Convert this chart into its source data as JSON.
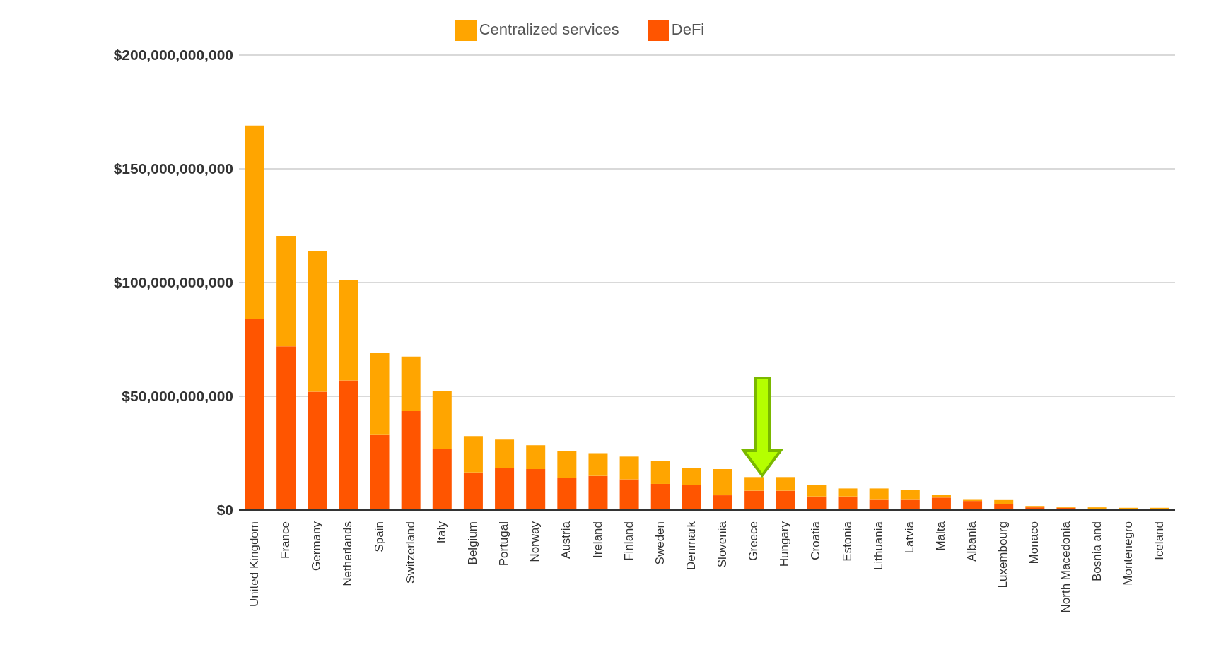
{
  "chart_data": {
    "type": "bar",
    "stacked": true,
    "categories": [
      "United Kingdom",
      "France",
      "Germany",
      "Netherlands",
      "Spain",
      "Switzerland",
      "Italy",
      "Belgium",
      "Portugal",
      "Norway",
      "Austria",
      "Ireland",
      "Finland",
      "Sweden",
      "Denmark",
      "Slovenia",
      "Greece",
      "Hungary",
      "Croatia",
      "Estonia",
      "Lithuania",
      "Latvia",
      "Malta",
      "Albania",
      "Luxembourg",
      "Monaco",
      "North Macedonia",
      "Bosnia and",
      "Montenegro",
      "Iceland"
    ],
    "series": [
      {
        "name": "DeFi",
        "color": "#ff5500",
        "values": [
          84000000000,
          72000000000,
          52000000000,
          57000000000,
          33000000000,
          43500000000,
          27000000000,
          16500000000,
          18500000000,
          18000000000,
          14000000000,
          15000000000,
          13500000000,
          11500000000,
          11000000000,
          6500000000,
          8500000000,
          8500000000,
          6000000000,
          6000000000,
          4500000000,
          4500000000,
          5500000000,
          4000000000,
          2700000000,
          1200000000,
          1000000000,
          600000000,
          600000000,
          600000000
        ]
      },
      {
        "name": "Centralized services",
        "color": "#ffa500",
        "values": [
          85000000000,
          48500000000,
          62000000000,
          44000000000,
          36000000000,
          24000000000,
          25500000000,
          16000000000,
          12500000000,
          10500000000,
          12000000000,
          10000000000,
          10000000000,
          10000000000,
          7500000000,
          11500000000,
          6000000000,
          6000000000,
          5000000000,
          3500000000,
          5000000000,
          4500000000,
          1200000000,
          500000000,
          1700000000,
          600000000,
          300000000,
          600000000,
          400000000,
          400000000
        ]
      }
    ],
    "ylim": [
      0,
      200000000000
    ],
    "yticks": [
      {
        "value": 0,
        "label": "$0"
      },
      {
        "value": 50000000000,
        "label": "$50,000,000,000"
      },
      {
        "value": 100000000000,
        "label": "$100,000,000,000"
      },
      {
        "value": 150000000000,
        "label": "$150,000,000,000"
      },
      {
        "value": 200000000000,
        "label": "$200,000,000,000"
      }
    ],
    "grid": "y",
    "legend": "top"
  }
}
